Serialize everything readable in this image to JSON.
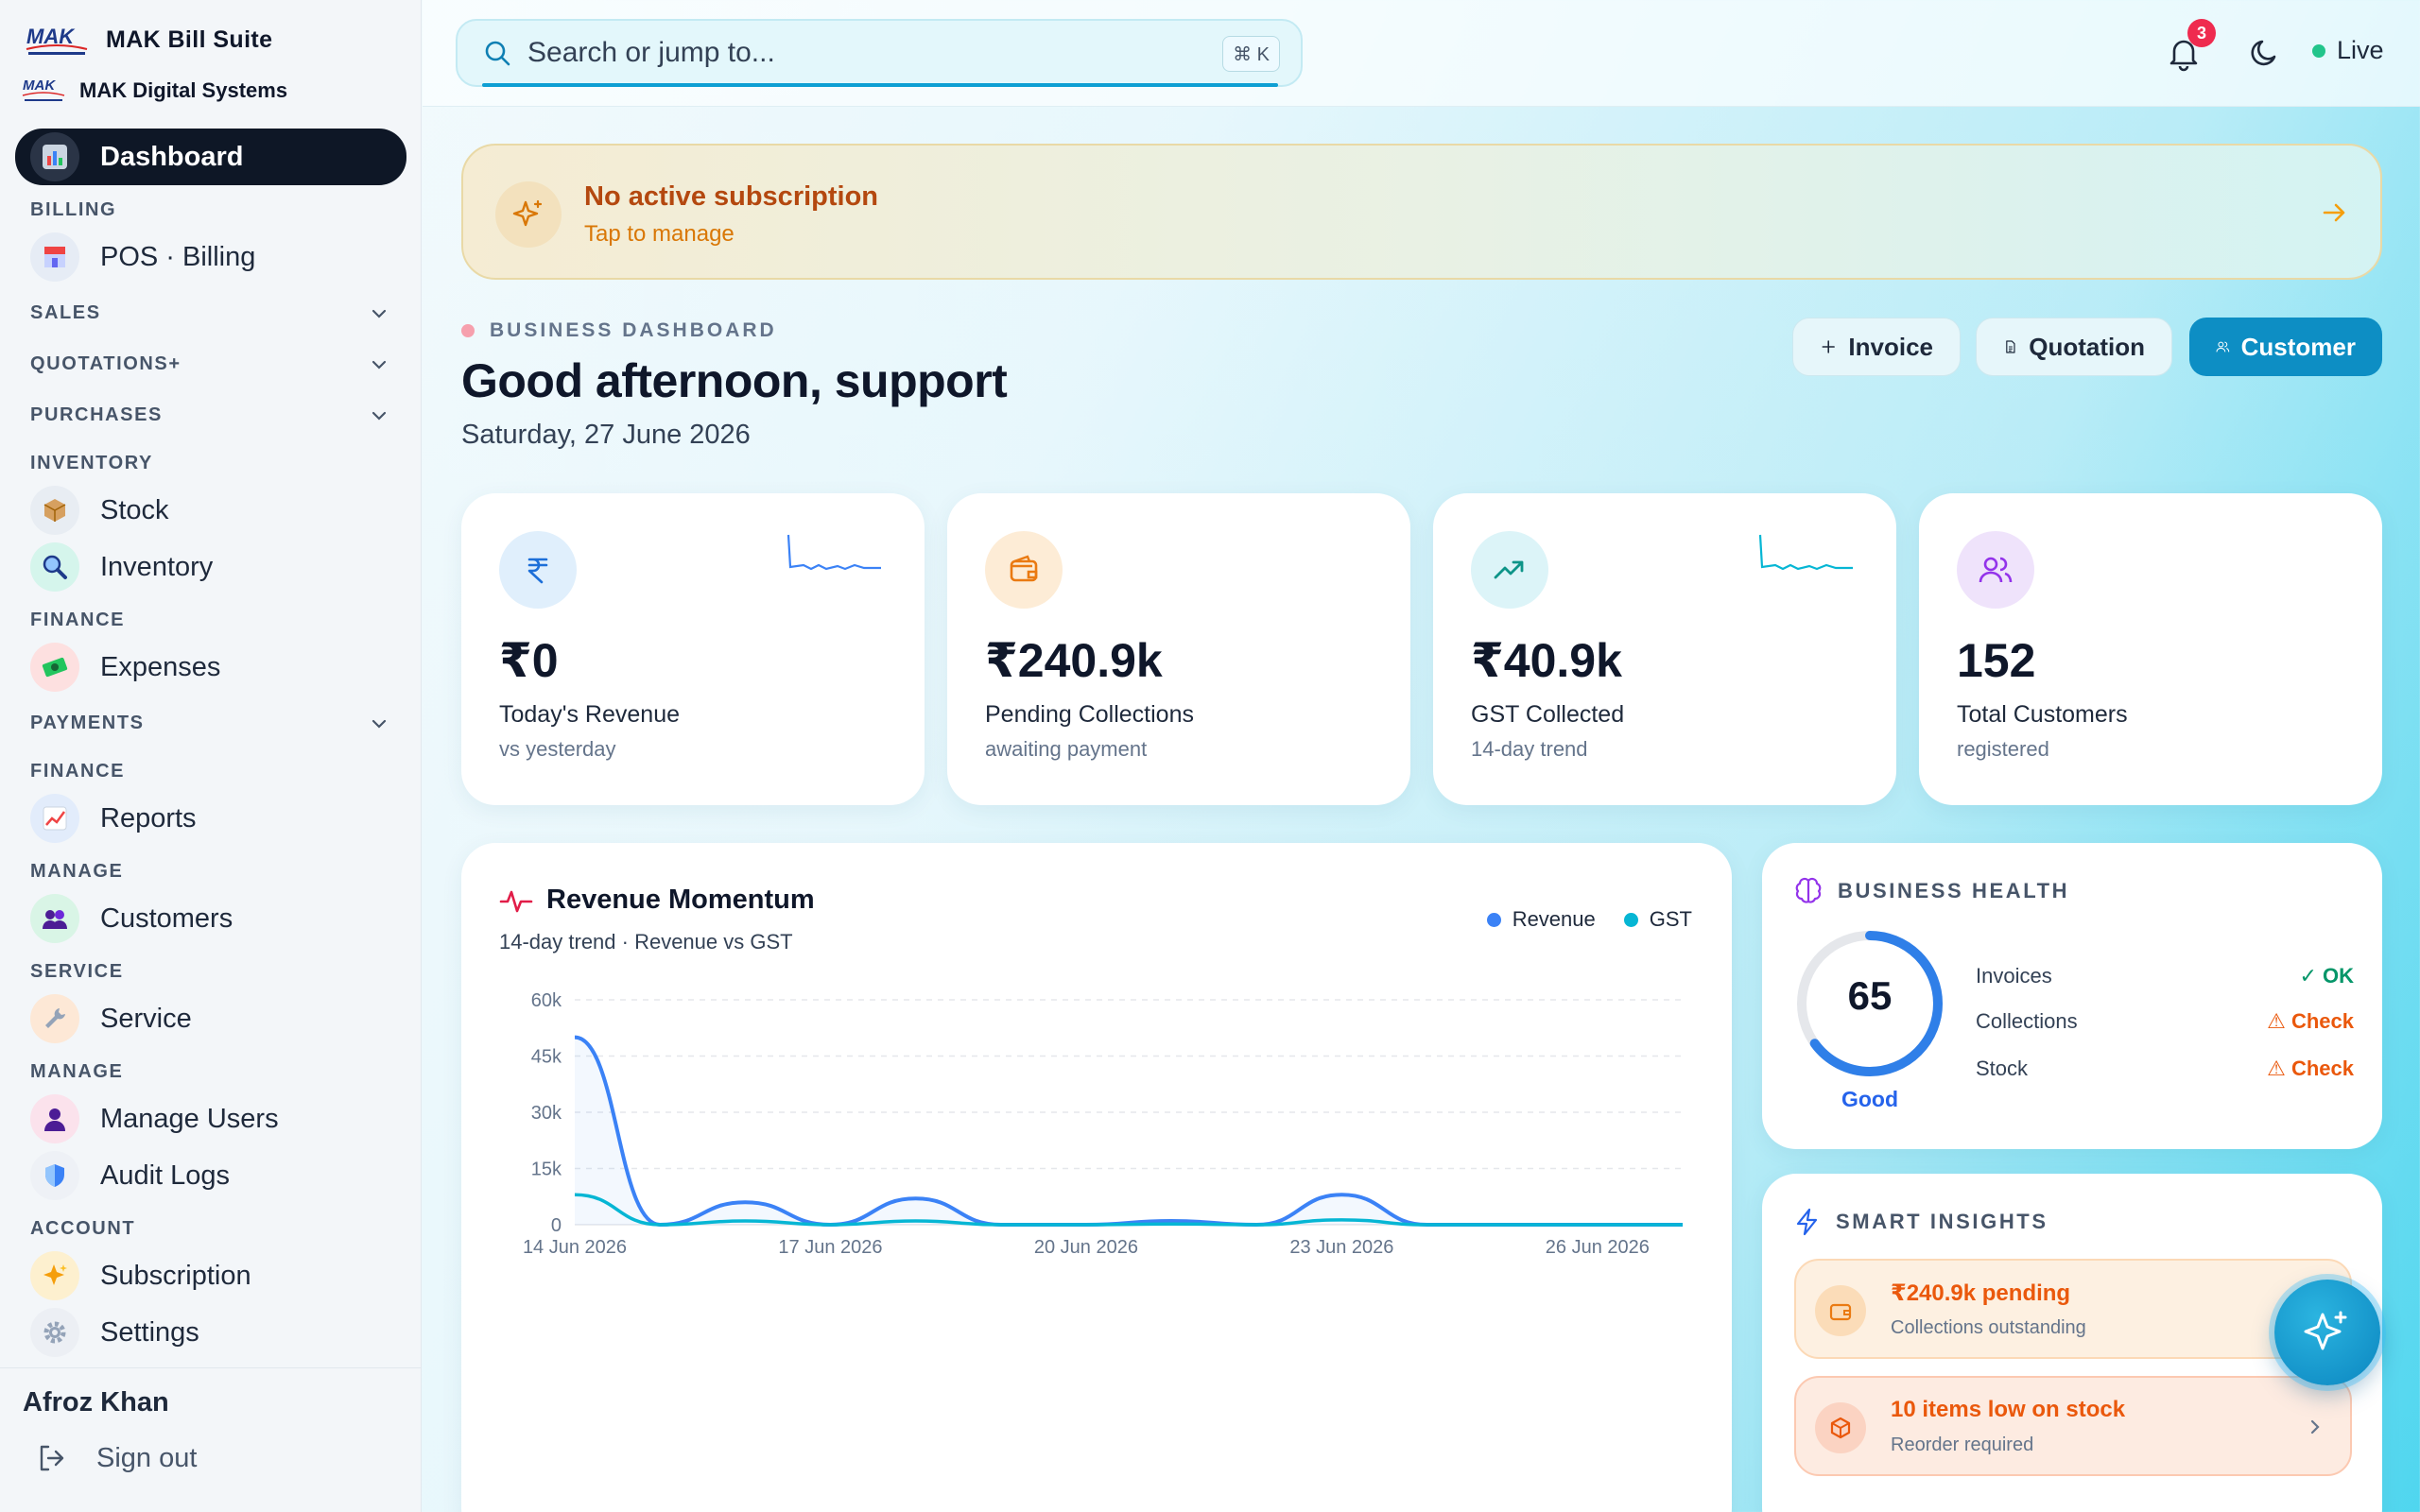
{
  "app": {
    "name": "MAK Bill Suite",
    "org": "MAK Digital Systems",
    "logo_text": "MAK"
  },
  "sidebar": {
    "active": {
      "label": "Dashboard",
      "icon": "bar-chart-icon"
    },
    "sections": {
      "billing": "BILLING",
      "sales": "SALES",
      "quotations": "QUOTATIONS+",
      "purchases": "PURCHASES",
      "inventory": "INVENTORY",
      "finance1": "FINANCE",
      "payments": "PAYMENTS",
      "finance2": "FINANCE",
      "manage1": "MANAGE",
      "service": "SERVICE",
      "manage2": "MANAGE",
      "account": "ACCOUNT"
    },
    "items": {
      "pos": {
        "label": "POS · Billing",
        "icon": "store-icon"
      },
      "stock": {
        "label": "Stock",
        "icon": "package-icon"
      },
      "inventory": {
        "label": "Inventory",
        "icon": "magnifier-icon"
      },
      "expenses": {
        "label": "Expenses",
        "icon": "money-icon"
      },
      "reports": {
        "label": "Reports",
        "icon": "chart-icon"
      },
      "customers": {
        "label": "Customers",
        "icon": "users-icon"
      },
      "service": {
        "label": "Service",
        "icon": "wrench-icon"
      },
      "manage_users": {
        "label": "Manage Users",
        "icon": "user-icon"
      },
      "audit_logs": {
        "label": "Audit Logs",
        "icon": "shield-icon"
      },
      "subscription": {
        "label": "Subscription",
        "icon": "sparkles-icon"
      },
      "settings": {
        "label": "Settings",
        "icon": "gear-icon"
      }
    },
    "user": {
      "name": "Afroz Khan",
      "sign_out": "Sign out"
    }
  },
  "topbar": {
    "search_placeholder": "Search or jump to...",
    "shortcut": "⌘ K",
    "notifications": "3",
    "status": "Live"
  },
  "banner": {
    "title": "No active subscription",
    "subtitle": "Tap to manage"
  },
  "header": {
    "eyebrow": "BUSINESS DASHBOARD",
    "greeting": "Good afternoon, support",
    "date": "Saturday, 27 June 2026",
    "actions": {
      "invoice": "Invoice",
      "quotation": "Quotation",
      "customer": "Customer"
    }
  },
  "stats": [
    {
      "value": "₹0",
      "label": "Today's Revenue",
      "sub": "vs yesterday",
      "icon": "rupee-icon"
    },
    {
      "value": "₹240.9k",
      "label": "Pending Collections",
      "sub": "awaiting payment",
      "icon": "wallet-icon"
    },
    {
      "value": "₹40.9k",
      "label": "GST Collected",
      "sub": "14-day trend",
      "icon": "trending-up-icon"
    },
    {
      "value": "152",
      "label": "Total Customers",
      "sub": "registered",
      "icon": "users-icon"
    }
  ],
  "revenue_chart": {
    "title": "Revenue Momentum",
    "subtitle": "14-day trend · Revenue vs GST",
    "legend": {
      "revenue": "Revenue",
      "gst": "GST"
    },
    "colors": {
      "revenue": "#3b82f6",
      "gst": "#06b6d4"
    }
  },
  "chart_data": {
    "type": "area",
    "title": "Revenue Momentum",
    "subtitle": "14-day trend · Revenue vs GST",
    "x": [
      "14 Jun 2026",
      "15 Jun 2026",
      "16 Jun 2026",
      "17 Jun 2026",
      "18 Jun 2026",
      "19 Jun 2026",
      "20 Jun 2026",
      "21 Jun 2026",
      "22 Jun 2026",
      "23 Jun 2026",
      "24 Jun 2026",
      "25 Jun 2026",
      "26 Jun 2026",
      "27 Jun 2026"
    ],
    "x_tick_labels": [
      "14 Jun 2026",
      "17 Jun 2026",
      "20 Jun 2026",
      "23 Jun 2026",
      "26 Jun 2026"
    ],
    "y_ticks": [
      0,
      15000,
      30000,
      45000,
      60000
    ],
    "y_tick_labels": [
      "0",
      "15k",
      "30k",
      "45k",
      "60k"
    ],
    "ylim": [
      0,
      60000
    ],
    "grid": true,
    "legend": "top-right",
    "series": [
      {
        "name": "Revenue",
        "values": [
          50000,
          0,
          6000,
          0,
          7000,
          0,
          0,
          1000,
          0,
          8000,
          0,
          0,
          0,
          0
        ]
      },
      {
        "name": "GST",
        "values": [
          8000,
          0,
          1000,
          0,
          1000,
          0,
          0,
          200,
          0,
          1300,
          0,
          0,
          0,
          0
        ]
      }
    ]
  },
  "health": {
    "title": "BUSINESS HEALTH",
    "score": 65,
    "score_label": "Good",
    "rows": [
      {
        "label": "Invoices",
        "status": "✓ OK",
        "level": "ok"
      },
      {
        "label": "Collections",
        "status": "⚠ Check",
        "level": "warn"
      },
      {
        "label": "Stock",
        "status": "⚠ Check",
        "level": "warn"
      }
    ]
  },
  "insights": {
    "title": "SMART INSIGHTS",
    "items": [
      {
        "title": "₹240.9k pending",
        "sub": "Collections outstanding",
        "icon": "wallet-icon"
      },
      {
        "title": "10 items low on stock",
        "sub": "Reorder required",
        "icon": "package-icon"
      }
    ]
  }
}
